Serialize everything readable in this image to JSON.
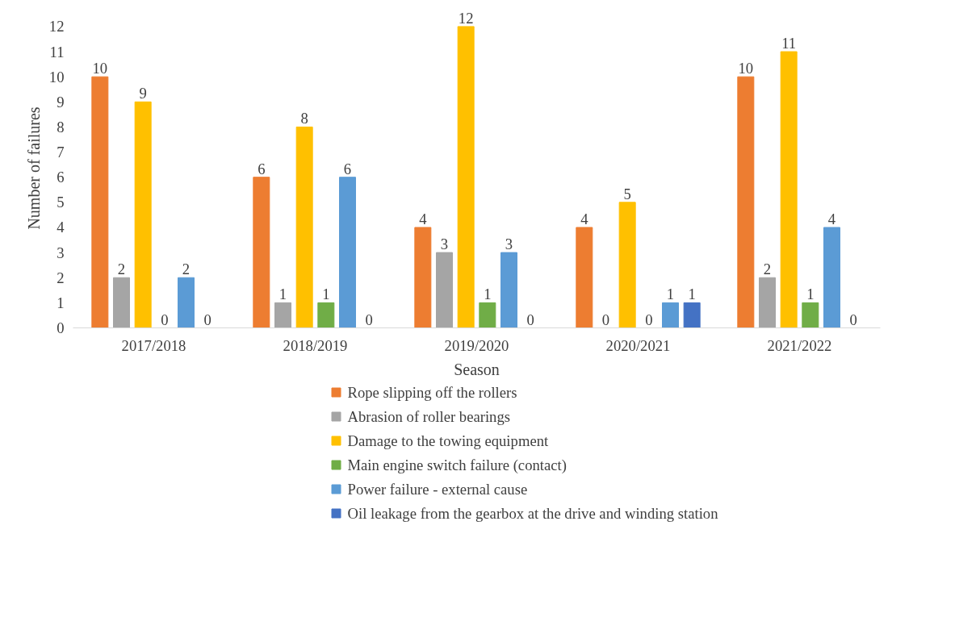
{
  "chart_data": {
    "type": "bar",
    "xlabel": "Season",
    "ylabel": "Number of failures",
    "categories": [
      "2017/2018",
      "2018/2019",
      "2019/2020",
      "2020/2021",
      "2021/2022"
    ],
    "series": [
      {
        "name": "Rope slipping off the rollers",
        "color": "#ed7d31",
        "values": [
          10,
          6,
          4,
          4,
          10
        ]
      },
      {
        "name": "Abrasion of roller bearings",
        "color": "#a5a5a5",
        "values": [
          2,
          1,
          3,
          0,
          2
        ]
      },
      {
        "name": "Damage to the towing equipment",
        "color": "#ffc000",
        "values": [
          9,
          8,
          12,
          5,
          11
        ]
      },
      {
        "name": "Main engine switch failure (contact)",
        "color": "#70ad47",
        "values": [
          0,
          1,
          1,
          0,
          1
        ]
      },
      {
        "name": "Power failure - external cause",
        "color": "#5b9bd5",
        "values": [
          2,
          6,
          3,
          1,
          4
        ]
      },
      {
        "name": "Oil leakage from the gearbox at the drive and winding  station",
        "color": "#4472c4",
        "values": [
          0,
          0,
          0,
          1,
          0
        ]
      }
    ],
    "ylim": [
      0,
      12
    ],
    "yticks": [
      0,
      1,
      2,
      3,
      4,
      5,
      6,
      7,
      8,
      9,
      10,
      11,
      12
    ],
    "data_labels": true,
    "grid": false,
    "legend": "bottom"
  }
}
